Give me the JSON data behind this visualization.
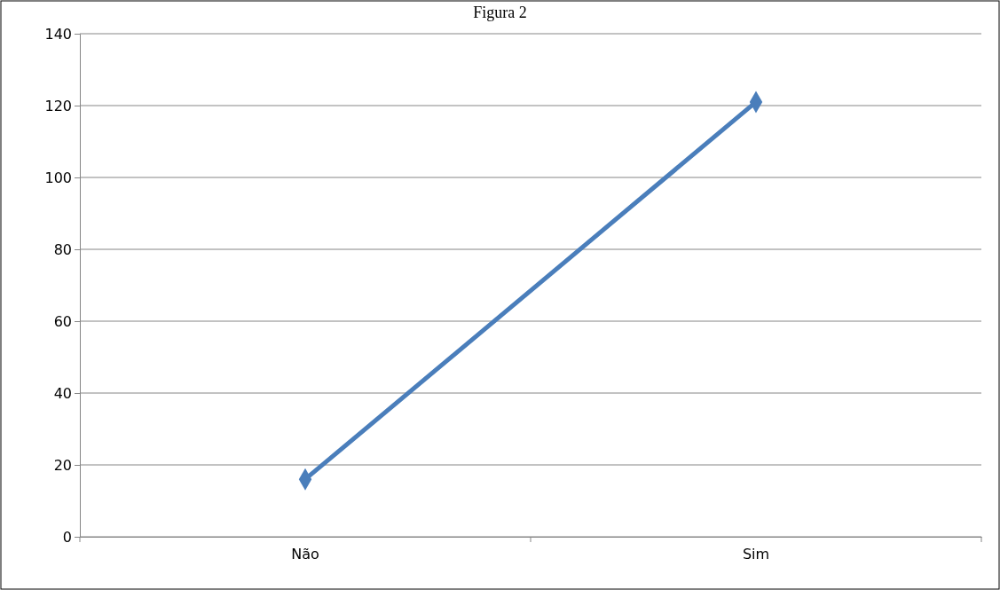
{
  "chart_data": {
    "type": "line",
    "title": "Figura 2",
    "categories": [
      "Não",
      "Sim"
    ],
    "series": [
      {
        "color": "#4a7ebb",
        "values": [
          16,
          121
        ]
      }
    ],
    "ylim": [
      0,
      140
    ],
    "yticks": [
      0,
      20,
      40,
      60,
      80,
      100,
      120,
      140
    ],
    "grid": "y",
    "marker": "diamond",
    "line_style": "solid"
  }
}
